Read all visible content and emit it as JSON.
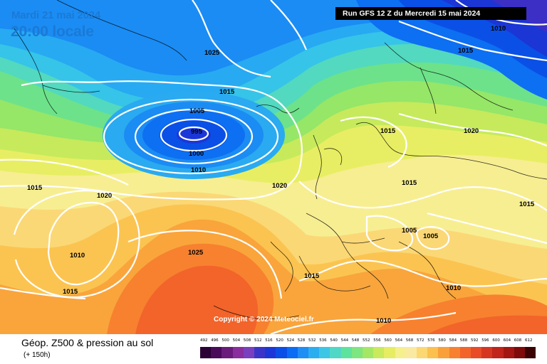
{
  "header": {
    "date": "Mardi 21 mai 2024",
    "time": "20:00 locale",
    "run": "Run GFS 12 Z du Mercredi 15 mai 2024"
  },
  "copyright": "Copyright © 2024 Meteociel.fr",
  "footer": {
    "product": "Géop. Z500 & pression au sol",
    "lead": "(+ 150h)"
  },
  "scale": {
    "labels": [
      "492",
      "496",
      "500",
      "504",
      "508",
      "512",
      "516",
      "520",
      "524",
      "528",
      "532",
      "536",
      "540",
      "544",
      "548",
      "552",
      "556",
      "560",
      "564",
      "568",
      "572",
      "576",
      "580",
      "584",
      "588",
      "592",
      "596",
      "600",
      "604",
      "608",
      "612"
    ],
    "colors": [
      "#2a0035",
      "#4a0a5a",
      "#6a1b7c",
      "#8a2d9e",
      "#7a3fbf",
      "#3a35c8",
      "#1c37d8",
      "#0a4ee8",
      "#0a6cf5",
      "#1e8ef5",
      "#2aaef0",
      "#3cc6e6",
      "#4fd8c6",
      "#5ee39e",
      "#7de680",
      "#a3e765",
      "#c9ea5c",
      "#e6ed62",
      "#f6ef8e",
      "#fae9a0",
      "#fbd872",
      "#fbc04d",
      "#f9a03a",
      "#f7812f",
      "#f2642a",
      "#e84b26",
      "#d63621",
      "#c0241a",
      "#a31612",
      "#7f0a0a",
      "#3a0202"
    ]
  },
  "pressure_labels": [
    {
      "text": "1025"
    },
    {
      "text": "1015"
    },
    {
      "text": "1005"
    },
    {
      "text": "995"
    },
    {
      "text": "1000"
    },
    {
      "text": "1010"
    },
    {
      "text": "1020"
    },
    {
      "text": "1015"
    },
    {
      "text": "1020"
    },
    {
      "text": "1015"
    },
    {
      "text": "1010"
    },
    {
      "text": "1025"
    },
    {
      "text": "1015"
    },
    {
      "text": "1015"
    },
    {
      "text": "1020"
    },
    {
      "text": "1015"
    },
    {
      "text": "1015"
    },
    {
      "text": "1005"
    },
    {
      "text": "1005"
    },
    {
      "text": "1010"
    },
    {
      "text": "1010"
    },
    {
      "text": "1015"
    },
    {
      "text": "1010"
    },
    {
      "text": "1015"
    }
  ]
}
